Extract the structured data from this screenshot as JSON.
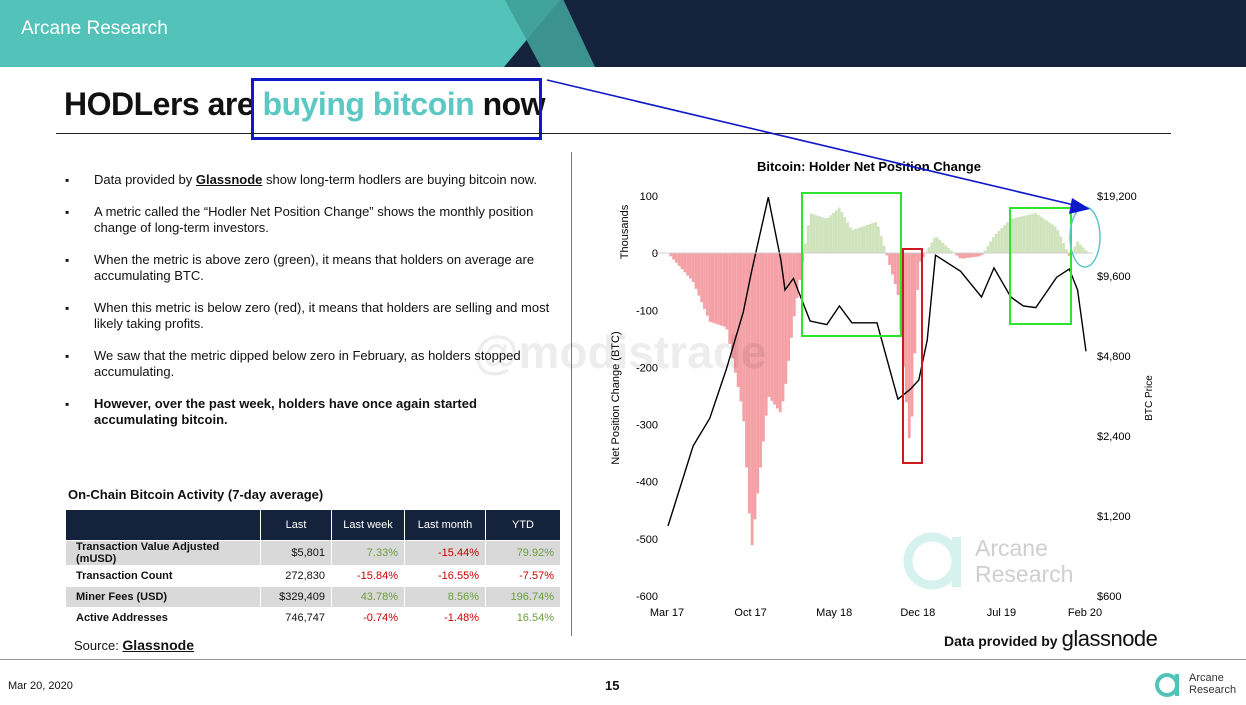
{
  "header": {
    "brand": "Arcane Research"
  },
  "title": {
    "part1": "HODLers are ",
    "highlight": "buying bitcoin",
    "part3": " now"
  },
  "bullets": [
    {
      "pre": "Data provided by ",
      "link": "Glassnode",
      "post": " show long-term hodlers are buying bitcoin now."
    },
    {
      "text": "A metric called the “Hodler Net Position Change” shows the monthly position change of long-term investors."
    },
    {
      "text": "When the metric is above zero (green), it means that holders on average are accumulating BTC."
    },
    {
      "text": "When this metric is below zero (red), it means that holders are selling and most likely taking profits."
    },
    {
      "text": "We saw that the metric dipped below zero in February, as holders stopped accumulating."
    },
    {
      "text": "However, over the past week, holders have once again started accumulating bitcoin."
    }
  ],
  "table": {
    "title": "On-Chain Bitcoin Activity (7-day average)",
    "headers": [
      "",
      "Last",
      "Last week",
      "Last month",
      "YTD"
    ],
    "rows": [
      [
        "Transaction Value Adjusted (mUSD)",
        "$5,801",
        "7.33%",
        "-15.44%",
        "79.92%"
      ],
      [
        "Transaction Count",
        "272,830",
        "-15.84%",
        "-16.55%",
        "-7.57%"
      ],
      [
        "Miner Fees (USD)",
        "$329,409",
        "43.78%",
        "8.56%",
        "196.74%"
      ],
      [
        "Active Addresses",
        "746,747",
        "-0.74%",
        "-1.48%",
        "16.54%"
      ]
    ]
  },
  "source": {
    "label": "Source: ",
    "link": "Glassnode"
  },
  "footer": {
    "date": "Mar 20, 2020",
    "page": "15",
    "logo_line1": "Arcane",
    "logo_line2": "Research"
  },
  "chart_data": {
    "type": "area",
    "title": "Bitcoin: Holder Net Position Change",
    "left_axis_label": "Net Position Change (BTC)",
    "left_axis_unit": "Thousands",
    "right_axis_label": "BTC Price",
    "left_ticks": [
      100,
      0,
      -100,
      -200,
      -300,
      -400,
      -500,
      -600
    ],
    "left_ylim": [
      -600,
      100
    ],
    "right_ticks": [
      "$19,200",
      "$9,600",
      "$4,800",
      "$2,400",
      "$1,200",
      "$600"
    ],
    "right_scale": "log",
    "right_ylim": [
      600,
      19200
    ],
    "x_ticks": [
      "Mar 17",
      "Oct 17",
      "May 18",
      "Dec 18",
      "Jul 19",
      "Feb 20"
    ],
    "x": [
      0,
      0.06,
      0.1,
      0.14,
      0.18,
      0.2,
      0.24,
      0.27,
      0.28,
      0.3,
      0.34,
      0.38,
      0.41,
      0.44,
      0.5,
      0.55,
      0.58,
      0.6,
      0.62,
      0.64,
      0.7,
      0.75,
      0.78,
      0.82,
      0.85,
      0.88,
      0.93,
      0.96,
      0.98,
      1.0
    ],
    "series": [
      {
        "name": "Net Position Change (BTC)",
        "values": [
          0,
          -50,
          -120,
          -130,
          -280,
          -520,
          -250,
          -280,
          -240,
          -120,
          70,
          60,
          80,
          40,
          55,
          -70,
          -350,
          -20,
          5,
          30,
          -10,
          -5,
          30,
          60,
          65,
          70,
          45,
          -5,
          20,
          5
        ]
      },
      {
        "name": "BTC Price",
        "values": [
          1100,
          2200,
          2800,
          4300,
          7000,
          10000,
          19000,
          11000,
          8500,
          9400,
          6500,
          6300,
          7400,
          6400,
          6400,
          3300,
          3600,
          3900,
          5500,
          11500,
          10000,
          8000,
          10300,
          8000,
          7400,
          7300,
          9500,
          10200,
          8500,
          5000
        ]
      }
    ]
  },
  "annotations": {
    "watermark": "@modistrade",
    "chart_logo_line1": "Arcane",
    "chart_logo_line2": "Research",
    "data_provided_by": "Data provided by",
    "glassnode_logo": "glassnode"
  },
  "colors": {
    "navy": "#14233b",
    "teal": "#53c3ba",
    "highlight": "#5cc8c4",
    "negative_area": "#f4a0a5",
    "positive_area": "#cfe3bc",
    "green_box": "#2ee52e",
    "red_box": "#cc1a1a",
    "blue_arrow": "#1019c9"
  }
}
